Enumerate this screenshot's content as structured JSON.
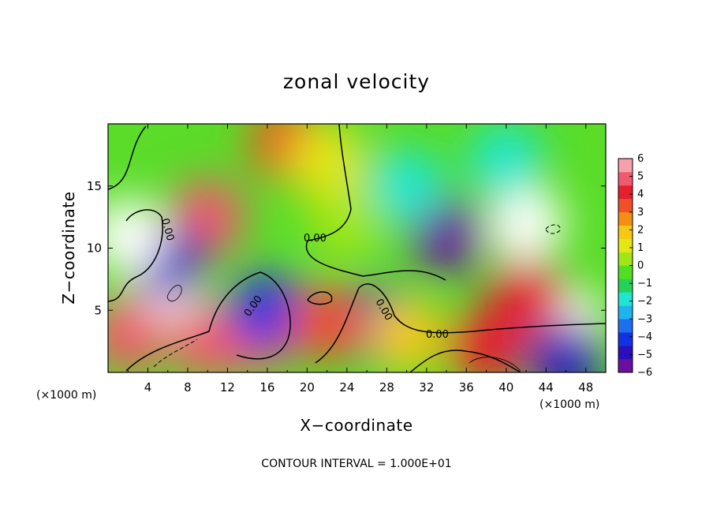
{
  "chart_data": {
    "type": "heatmap",
    "title": "zonal velocity",
    "xlabel": "X−coordinate",
    "ylabel": "Z−coordinate",
    "x_unit_left": "(×1000 m)",
    "x_unit_right": "(×1000 m)",
    "footer": "CONTOUR INTERVAL = 1.000E+01",
    "xlim": [
      0,
      50
    ],
    "ylim": [
      0,
      20
    ],
    "x_ticks": [
      4,
      8,
      12,
      16,
      20,
      24,
      28,
      32,
      36,
      40,
      44,
      48
    ],
    "y_ticks": [
      5,
      10,
      15
    ],
    "colorbar": {
      "ticks": [
        "6",
        "5",
        "4",
        "3",
        "2",
        "1",
        "0",
        "−1",
        "−2",
        "−3",
        "−4",
        "−5",
        "−6"
      ],
      "range": [
        -6,
        6
      ],
      "colors": [
        "#6a0fa0",
        "#2a0fbe",
        "#1232e6",
        "#1e6ef0",
        "#1eb4f0",
        "#1ee6d2",
        "#24d25a",
        "#50e020",
        "#a0e614",
        "#e6e614",
        "#f5c814",
        "#f58c14",
        "#f05028",
        "#e61e2d",
        "#f05a6e",
        "#f5a0aa"
      ]
    },
    "contour_labels": [
      "0.00",
      "0.00",
      "0.00",
      "0.00",
      "0.00"
    ],
    "features": [
      {
        "x": 10,
        "z": 12.5,
        "value": 5
      },
      {
        "x": 6,
        "z": 6.5,
        "value": 7
      },
      {
        "x": 18,
        "z": 18.5,
        "value": 3
      },
      {
        "x": 6,
        "z": 9,
        "value": -5
      },
      {
        "x": 2,
        "z": 11,
        "value": -7
      },
      {
        "x": 10,
        "z": 2.5,
        "value": 5
      },
      {
        "x": 15,
        "z": 3,
        "value": 5
      },
      {
        "x": 16,
        "z": 5,
        "value": -4
      },
      {
        "x": 27,
        "z": 4,
        "value": -5
      },
      {
        "x": 34,
        "z": 11,
        "value": -6
      },
      {
        "x": 42,
        "z": 12,
        "value": -7
      },
      {
        "x": 40,
        "z": 17,
        "value": -2
      },
      {
        "x": 30,
        "z": 15,
        "value": -2
      },
      {
        "x": 24,
        "z": 12,
        "value": 0.5
      },
      {
        "x": 22,
        "z": 17,
        "value": 1
      },
      {
        "x": 46,
        "z": 4,
        "value": 7
      },
      {
        "x": 38,
        "z": 2,
        "value": 4
      },
      {
        "x": 42,
        "z": 6,
        "value": 4
      },
      {
        "x": 46,
        "z": 1,
        "value": -5
      },
      {
        "x": 2,
        "z": 3,
        "value": 5
      },
      {
        "x": 30,
        "z": 3,
        "value": 2
      },
      {
        "x": 22,
        "z": 4,
        "value": 3
      }
    ]
  }
}
